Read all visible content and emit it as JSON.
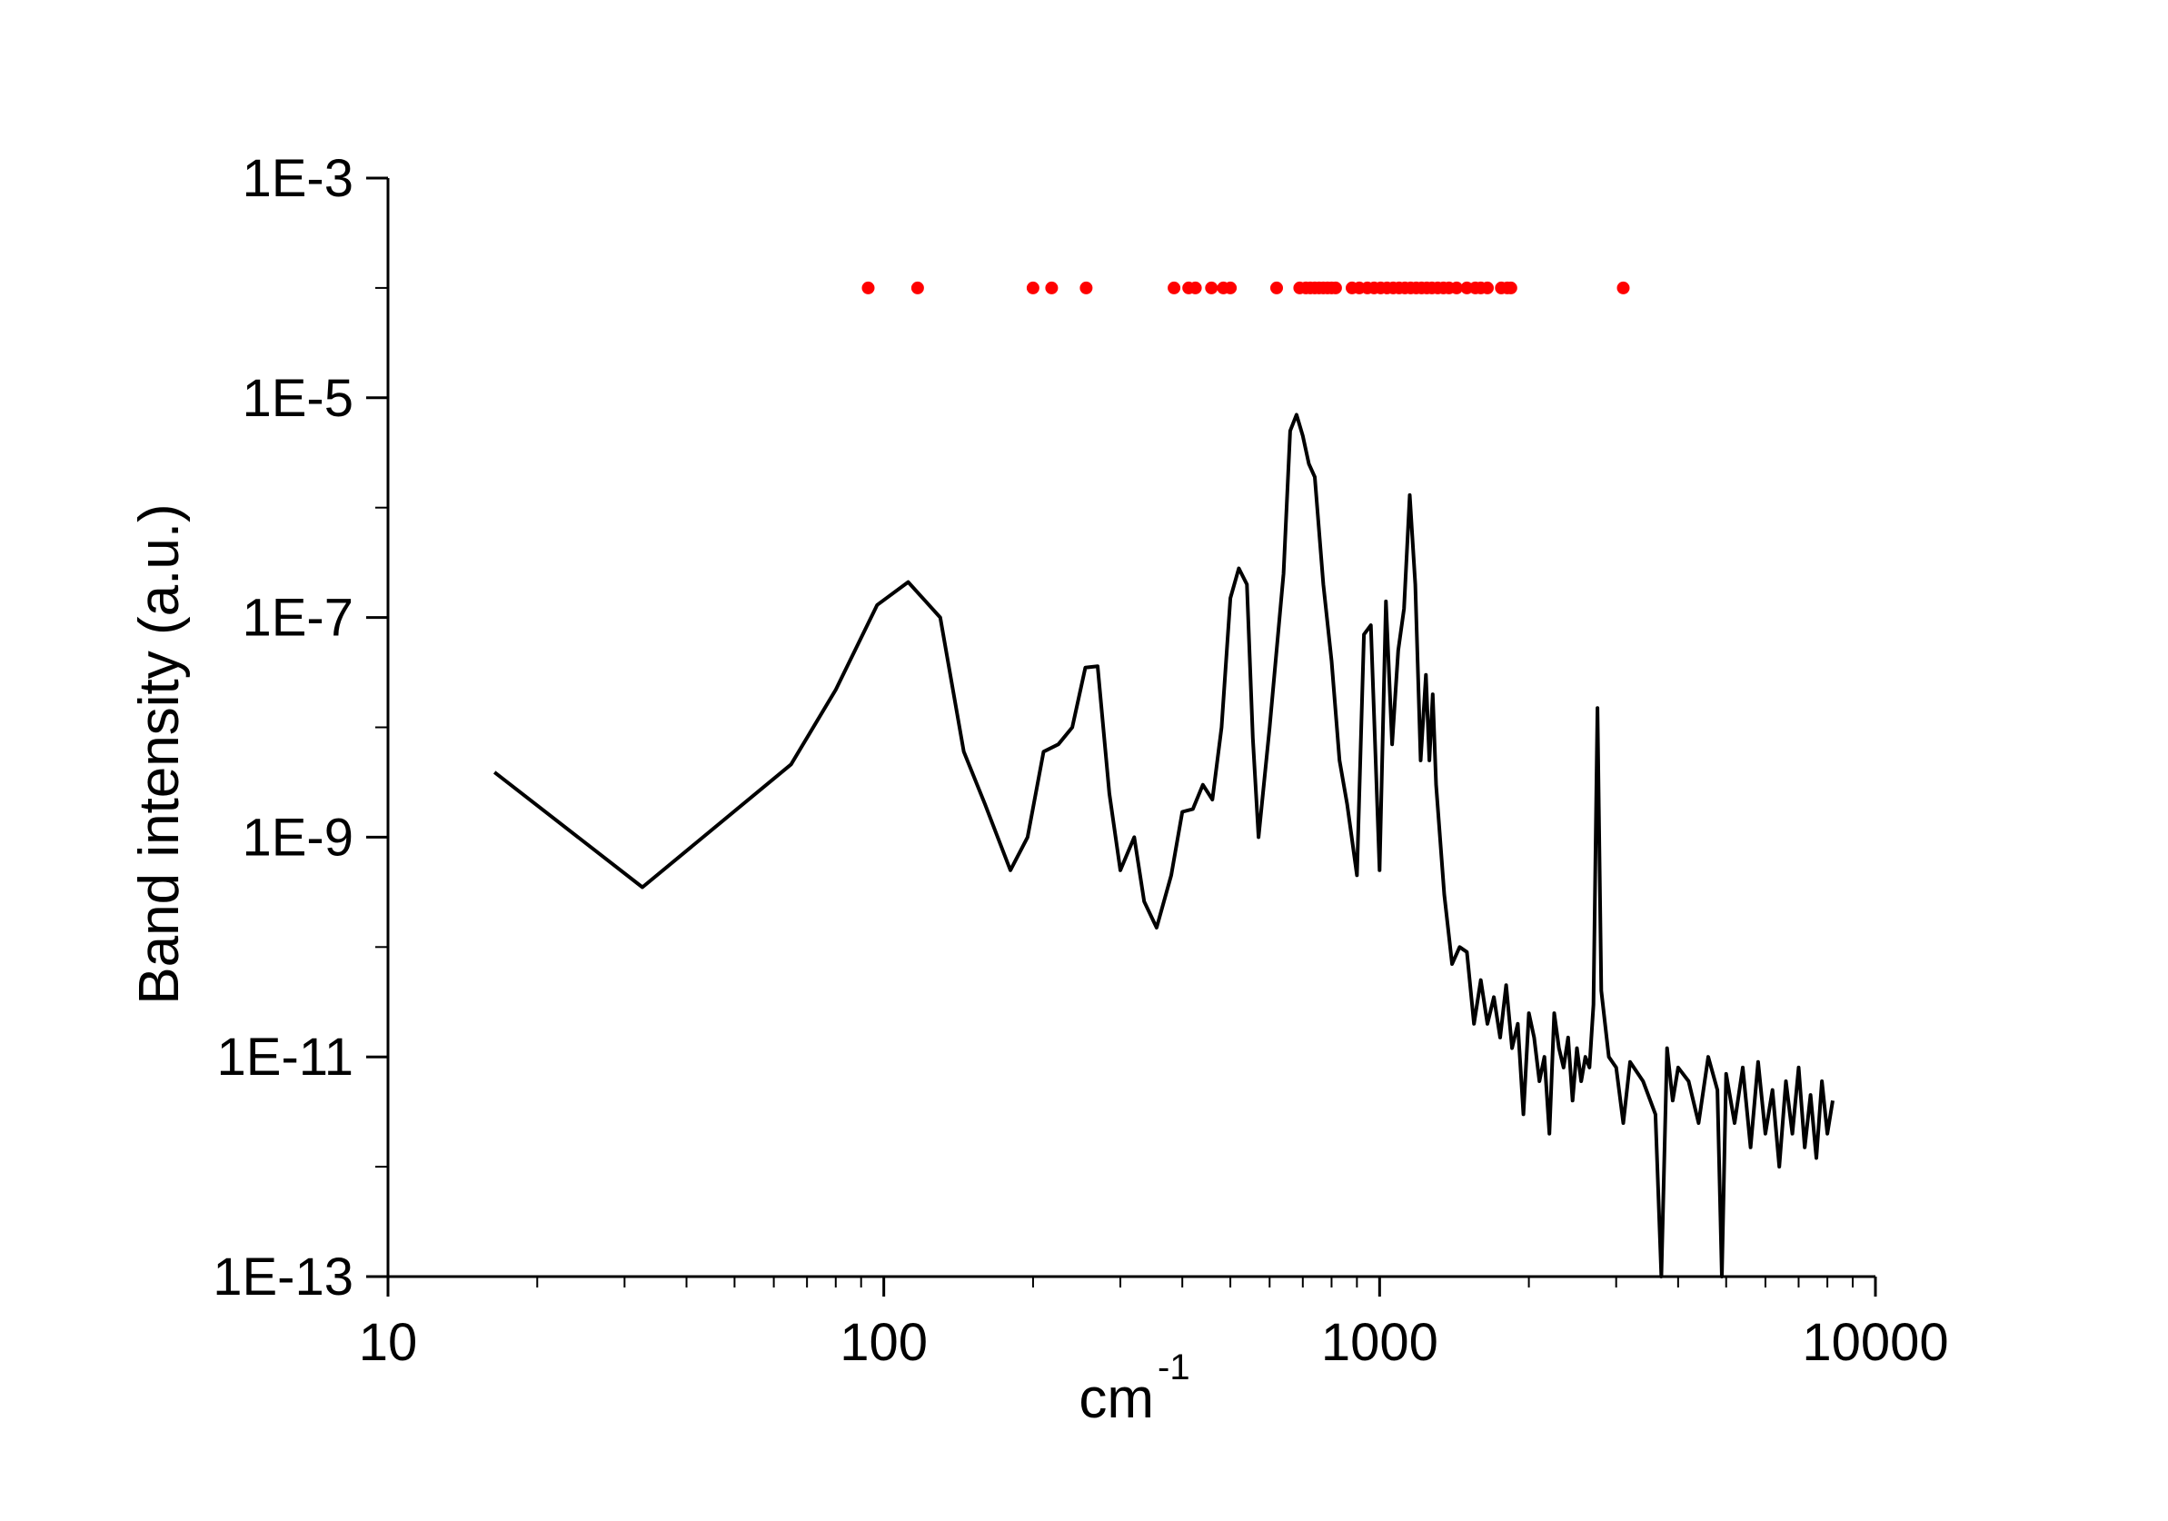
{
  "chart_data": {
    "type": "line",
    "title": "",
    "xlabel": "cm",
    "xlabel_superscript": "-1",
    "ylabel": "Band intensity (a.u.)",
    "x_scale": "log",
    "y_scale": "log",
    "xlim": [
      10,
      10000
    ],
    "ylim": [
      1e-13,
      0.001
    ],
    "x_ticks": [
      {
        "value": 10,
        "label": "10"
      },
      {
        "value": 100,
        "label": "100"
      },
      {
        "value": 1000,
        "label": "1000"
      },
      {
        "value": 10000,
        "label": "10000"
      }
    ],
    "y_ticks": [
      {
        "value": 0.001,
        "label": "1E-3"
      },
      {
        "value": 1e-05,
        "label": "1E-5"
      },
      {
        "value": 1e-07,
        "label": "1E-7"
      },
      {
        "value": 1e-09,
        "label": "1E-9"
      },
      {
        "value": 1e-11,
        "label": "1E-11"
      },
      {
        "value": 1e-13,
        "label": "1E-13"
      }
    ],
    "grid": false,
    "legend": "none",
    "series": [
      {
        "kind": "line",
        "color": "#000000",
        "x": [
          16.4,
          32.6,
          65,
          80,
          97,
          112,
          130,
          145,
          160,
          180,
          195,
          210,
          225,
          240,
          255,
          270,
          285,
          300,
          320,
          335,
          355,
          380,
          400,
          420,
          440,
          460,
          480,
          500,
          520,
          540,
          555,
          570,
          600,
          640,
          660,
          680,
          700,
          720,
          740,
          770,
          800,
          830,
          860,
          900,
          930,
          960,
          1000,
          1030,
          1060,
          1090,
          1120,
          1150,
          1180,
          1210,
          1240,
          1260,
          1280,
          1300,
          1350,
          1400,
          1450,
          1500,
          1550,
          1600,
          1650,
          1700,
          1750,
          1800,
          1850,
          1900,
          1950,
          2000,
          2050,
          2100,
          2150,
          2200,
          2250,
          2300,
          2350,
          2400,
          2450,
          2500,
          2550,
          2600,
          2650,
          2700,
          2750,
          2800,
          2900,
          3000,
          3100,
          3200,
          3400,
          3600,
          3700,
          3800,
          3900,
          4000,
          4200,
          4400,
          4600,
          4800,
          4900,
          5000,
          5200,
          5400,
          5600,
          5800,
          6000,
          6200,
          6400,
          6600,
          6800,
          7000,
          7200,
          7400,
          7600,
          7800,
          8000,
          8200
        ],
        "y": [
          3.9e-09,
          3.5e-10,
          4.6e-09,
          2.2e-08,
          1.3e-07,
          2.1e-07,
          1e-07,
          6e-09,
          2e-09,
          5e-10,
          1e-09,
          6e-09,
          7e-09,
          1e-08,
          3.5e-08,
          3.6e-08,
          2.5e-09,
          5e-10,
          1e-09,
          2.6e-10,
          1.5e-10,
          4.5e-10,
          1.7e-09,
          1.8e-09,
          3e-09,
          2.2e-09,
          1e-08,
          1.5e-07,
          2.8e-07,
          2e-07,
          8e-09,
          1e-09,
          1e-08,
          2.5e-07,
          5e-06,
          7e-06,
          4.5e-06,
          2.5e-06,
          1.9e-06,
          2e-07,
          4e-08,
          5e-09,
          2e-09,
          4.5e-10,
          7e-08,
          8.5e-08,
          5e-10,
          1.4e-07,
          7e-09,
          5e-08,
          1.2e-07,
          1.3e-06,
          2e-07,
          5e-09,
          3e-08,
          5e-09,
          2e-08,
          3e-09,
          3e-10,
          7e-11,
          1e-10,
          9e-11,
          2e-11,
          5e-11,
          2e-11,
          3.5e-11,
          1.5e-11,
          4.5e-11,
          1.2e-11,
          2e-11,
          3e-12,
          2.5e-11,
          1.5e-11,
          6e-12,
          1e-11,
          2e-12,
          2.5e-11,
          1.2e-11,
          8e-12,
          1.5e-11,
          4e-12,
          1.2e-11,
          6e-12,
          1e-11,
          8e-12,
          3e-11,
          1.5e-08,
          4e-11,
          1e-11,
          8e-12,
          2.5e-12,
          9e-12,
          6e-12,
          3e-12,
          1e-13,
          1.2e-11,
          4e-12,
          8e-12,
          6e-12,
          2.5e-12,
          1e-11,
          5e-12,
          1e-13,
          7e-12,
          2.5e-12,
          8e-12,
          1.5e-12,
          9e-12,
          2e-12,
          5e-12,
          1e-12,
          6e-12,
          2e-12,
          8e-12,
          1.5e-12,
          4.5e-12,
          1.2e-12,
          6e-12,
          2e-12,
          4e-12
        ]
      },
      {
        "kind": "scatter",
        "color": "#ff0000",
        "x": [
          93,
          117,
          200,
          218,
          256,
          385,
          412,
          425,
          458,
          484,
          500,
          620,
          690,
          710,
          725,
          740,
          755,
          770,
          785,
          800,
          815,
          880,
          910,
          945,
          975,
          1005,
          1035,
          1065,
          1095,
          1125,
          1155,
          1185,
          1215,
          1245,
          1275,
          1310,
          1345,
          1380,
          1430,
          1500,
          1560,
          1600,
          1650,
          1760,
          1810,
          1840,
          3100
        ],
        "y": [
          0.0001,
          0.0001,
          0.0001,
          0.0001,
          0.0001,
          0.0001,
          0.0001,
          0.0001,
          0.0001,
          0.0001,
          0.0001,
          0.0001,
          0.0001,
          0.0001,
          0.0001,
          0.0001,
          0.0001,
          0.0001,
          0.0001,
          0.0001,
          0.0001,
          0.0001,
          0.0001,
          0.0001,
          0.0001,
          0.0001,
          0.0001,
          0.0001,
          0.0001,
          0.0001,
          0.0001,
          0.0001,
          0.0001,
          0.0001,
          0.0001,
          0.0001,
          0.0001,
          0.0001,
          0.0001,
          0.0001,
          0.0001,
          0.0001,
          0.0001,
          0.0001,
          0.0001,
          0.0001,
          0.0001
        ]
      }
    ]
  }
}
